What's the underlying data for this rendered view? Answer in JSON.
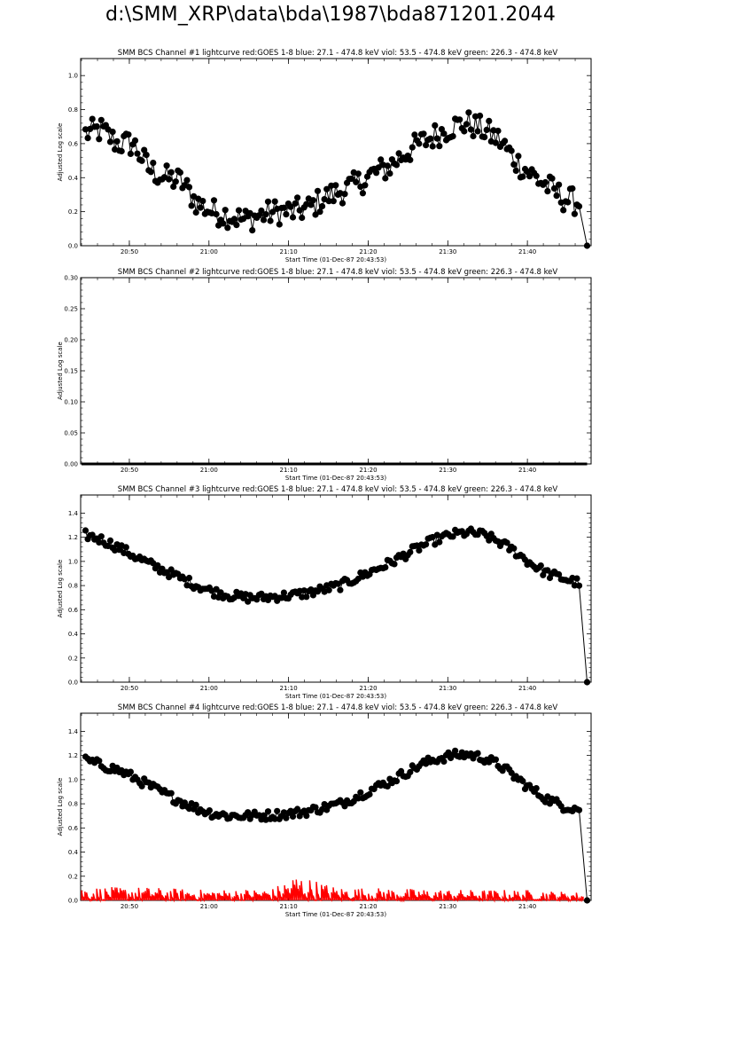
{
  "page": {
    "title": "d:\\SMM_XRP\\data\\bda\\1987\\bda871201.2044"
  },
  "colors": {
    "data": "#000000",
    "goes": "#ff0000",
    "axes": "#000000"
  },
  "chart_data": [
    {
      "type": "line",
      "title": "SMM BCS Channel #1 lightcurve  red:GOES 1-8  blue: 27.1 - 474.8 keV  viol: 53.5 - 474.8 keV  green: 226.3 - 474.8 keV",
      "xlabel": "Start Time (01-Dec-87 20:43:53)",
      "ylabel": "Adjusted Log scale",
      "x_unit": "time",
      "xlim": [
        "20:43:53",
        "21:48:00"
      ],
      "ylim": [
        0,
        1.1
      ],
      "yticks": [
        "0.0",
        "0.2",
        "0.4",
        "0.6",
        "0.8",
        "1.0"
      ],
      "xticks": [
        "20:50",
        "21:00",
        "21:10",
        "21:20",
        "21:30",
        "21:40"
      ],
      "series": [
        {
          "marker": "filled-circle",
          "x": [
            "20:44:30",
            "20:46:30",
            "20:48:30",
            "20:50:30",
            "20:52:30",
            "20:54:30",
            "20:56:30",
            "20:58:30",
            "21:00:30",
            "21:02:30",
            "21:04:30",
            "21:06:30",
            "21:08:30",
            "21:10:30",
            "21:12:30",
            "21:14:30",
            "21:16:30",
            "21:18:30",
            "21:20:30",
            "21:22:30",
            "21:24:30",
            "21:26:30",
            "21:28:30",
            "21:30:30",
            "21:32:30",
            "21:34:30",
            "21:36:30",
            "21:38:30",
            "21:40:30",
            "21:42:30",
            "21:44:30",
            "21:46:30",
            "21:47:30"
          ],
          "y": [
            0.66,
            0.68,
            0.6,
            0.6,
            0.45,
            0.4,
            0.38,
            0.25,
            0.2,
            0.18,
            0.15,
            0.18,
            0.2,
            0.2,
            0.22,
            0.28,
            0.32,
            0.36,
            0.42,
            0.46,
            0.54,
            0.6,
            0.65,
            0.7,
            0.72,
            0.68,
            0.62,
            0.5,
            0.42,
            0.35,
            0.28,
            0.25,
            0.0
          ]
        }
      ]
    },
    {
      "type": "line",
      "title": "SMM BCS Channel #2 lightcurve  red:GOES 1-8  blue: 27.1 - 474.8 keV  viol: 53.5 - 474.8 keV  green: 226.3 - 474.8 keV",
      "xlabel": "Start Time (01-Dec-87 20:43:53)",
      "ylabel": "Adjusted Log scale",
      "x_unit": "time",
      "xlim": [
        "20:43:53",
        "21:48:00"
      ],
      "ylim": [
        0,
        0.3
      ],
      "yticks": [
        "0.00",
        "0.05",
        "0.10",
        "0.15",
        "0.20",
        "0.25",
        "0.30"
      ],
      "xticks": [
        "20:50",
        "21:00",
        "21:10",
        "21:20",
        "21:30",
        "21:40"
      ],
      "series": [
        {
          "marker": "filled-circle",
          "x": [
            "20:44:00",
            "21:47:30"
          ],
          "y": [
            0.0,
            0.0
          ]
        }
      ]
    },
    {
      "type": "line",
      "title": "SMM BCS Channel #3 lightcurve  red:GOES 1-8  blue: 27.1 - 474.8 keV  viol: 53.5 - 474.8 keV  green: 226.3 - 474.8 keV",
      "xlabel": "Start Time (01-Dec-87 20:43:53)",
      "ylabel": "Adjusted Log scale",
      "x_unit": "time",
      "xlim": [
        "20:43:53",
        "21:48:00"
      ],
      "ylim": [
        0,
        1.55
      ],
      "yticks": [
        "0.0",
        "0.2",
        "0.4",
        "0.6",
        "0.8",
        "1.0",
        "1.2",
        "1.4"
      ],
      "xticks": [
        "20:50",
        "21:00",
        "21:10",
        "21:20",
        "21:30",
        "21:40"
      ],
      "series": [
        {
          "marker": "filled-circle",
          "x": [
            "20:44:30",
            "20:46:30",
            "20:48:30",
            "20:50:30",
            "20:52:30",
            "20:54:30",
            "20:56:30",
            "20:58:30",
            "21:00:30",
            "21:02:30",
            "21:04:30",
            "21:06:30",
            "21:08:30",
            "21:10:30",
            "21:12:30",
            "21:14:30",
            "21:16:30",
            "21:18:30",
            "21:20:30",
            "21:22:30",
            "21:24:30",
            "21:26:30",
            "21:28:30",
            "21:30:30",
            "21:32:30",
            "21:34:30",
            "21:36:30",
            "21:38:30",
            "21:40:30",
            "21:42:30",
            "21:44:30",
            "21:46:30",
            "21:47:30"
          ],
          "y": [
            1.22,
            1.18,
            1.12,
            1.05,
            0.98,
            0.92,
            0.86,
            0.8,
            0.75,
            0.72,
            0.7,
            0.7,
            0.71,
            0.72,
            0.74,
            0.77,
            0.8,
            0.86,
            0.92,
            0.98,
            1.05,
            1.12,
            1.18,
            1.22,
            1.24,
            1.22,
            1.16,
            1.08,
            0.98,
            0.9,
            0.86,
            0.82,
            0.0
          ]
        }
      ]
    },
    {
      "type": "line",
      "title": "SMM BCS Channel #4 lightcurve  red:GOES 1-8  blue: 27.1 - 474.8 keV  viol: 53.5 - 474.8 keV  green: 226.3 - 474.8 keV",
      "xlabel": "Start Time (01-Dec-87 20:43:53)",
      "ylabel": "Adjusted Log scale",
      "x_unit": "time",
      "xlim": [
        "20:43:53",
        "21:48:00"
      ],
      "ylim": [
        0,
        1.55
      ],
      "yticks": [
        "0.0",
        "0.2",
        "0.4",
        "0.6",
        "0.8",
        "1.0",
        "1.2",
        "1.4"
      ],
      "xticks": [
        "20:50",
        "21:00",
        "21:10",
        "21:20",
        "21:30",
        "21:40"
      ],
      "series": [
        {
          "marker": "filled-circle",
          "x": [
            "20:44:30",
            "20:46:30",
            "20:48:30",
            "20:50:30",
            "20:52:30",
            "20:54:30",
            "20:56:30",
            "20:58:30",
            "21:00:30",
            "21:02:30",
            "21:04:30",
            "21:06:30",
            "21:08:30",
            "21:10:30",
            "21:12:30",
            "21:14:30",
            "21:16:30",
            "21:18:30",
            "21:20:30",
            "21:22:30",
            "21:24:30",
            "21:26:30",
            "21:28:30",
            "21:30:30",
            "21:32:30",
            "21:34:30",
            "21:36:30",
            "21:38:30",
            "21:40:30",
            "21:42:30",
            "21:44:30",
            "21:46:30",
            "21:47:30"
          ],
          "y": [
            1.16,
            1.12,
            1.08,
            1.02,
            0.95,
            0.88,
            0.82,
            0.76,
            0.72,
            0.7,
            0.7,
            0.7,
            0.71,
            0.72,
            0.74,
            0.77,
            0.8,
            0.86,
            0.92,
            0.98,
            1.05,
            1.12,
            1.17,
            1.2,
            1.21,
            1.18,
            1.12,
            1.02,
            0.92,
            0.84,
            0.78,
            0.76,
            0.0
          ]
        },
        {
          "marker": "none",
          "color": "#ff0000",
          "style": "spiky",
          "x": [
            "20:44:00",
            "20:52:00",
            "21:00:00",
            "21:08:00",
            "21:11:00",
            "21:16:00",
            "21:24:00",
            "21:32:00",
            "21:40:00",
            "21:47:00"
          ],
          "y": [
            0.1,
            0.1,
            0.08,
            0.09,
            0.2,
            0.1,
            0.09,
            0.08,
            0.08,
            0.06
          ]
        }
      ]
    }
  ]
}
